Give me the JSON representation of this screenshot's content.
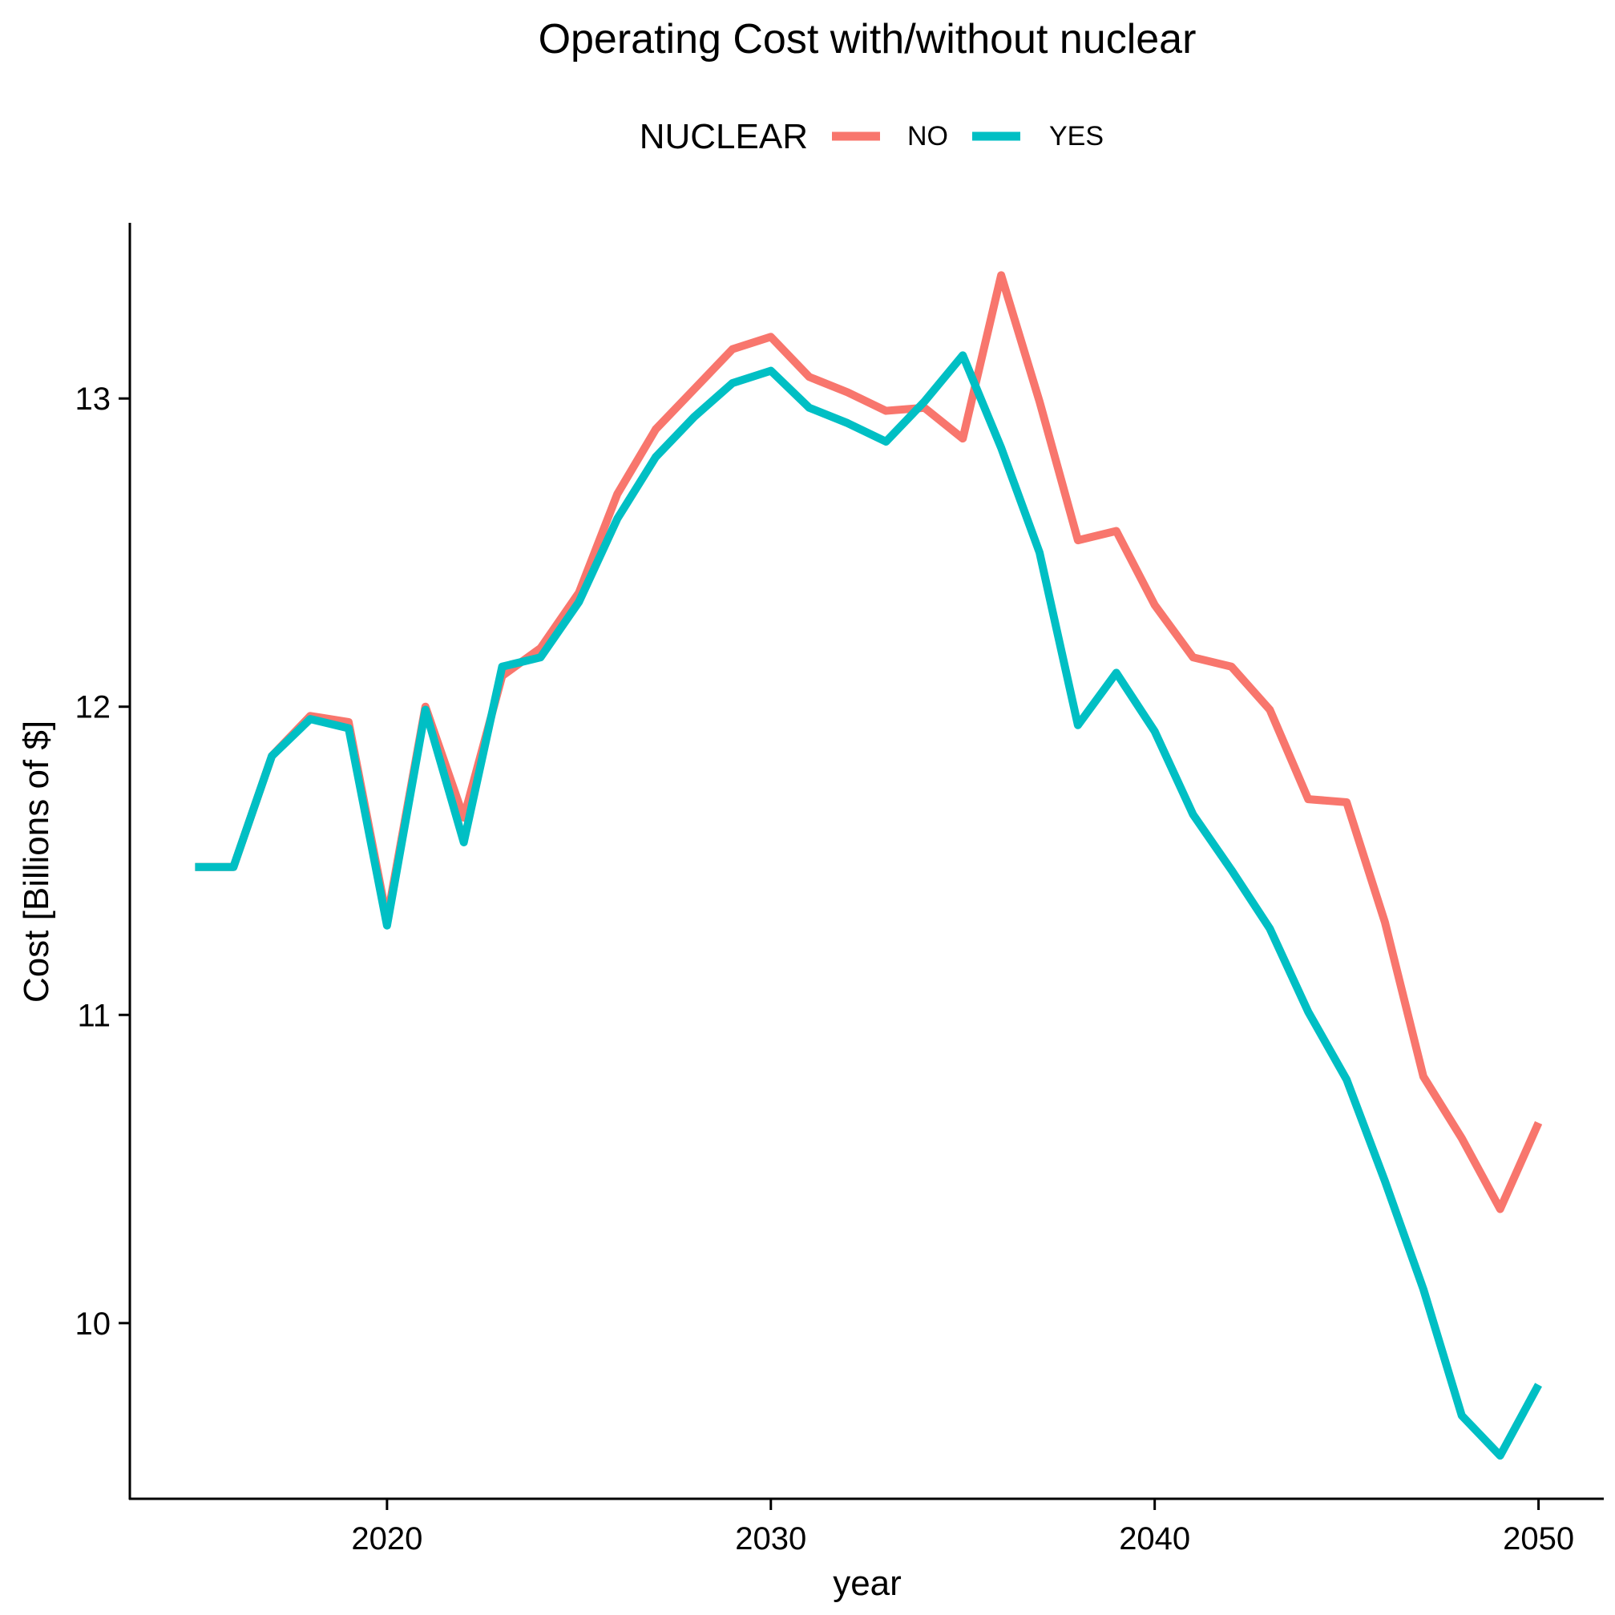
{
  "chart_data": {
    "type": "line",
    "title": "Operating Cost with/without nuclear",
    "xlabel": "year",
    "ylabel": "Cost [Billions of $]",
    "legend": {
      "title": "NUCLEAR",
      "position": "top"
    },
    "xlim": [
      2013.3,
      2051.7
    ],
    "ylim": [
      9.43,
      13.57
    ],
    "x_ticks": [
      2020,
      2030,
      2040,
      2050
    ],
    "y_ticks": [
      10,
      11,
      12,
      13
    ],
    "grid": false,
    "x": [
      2015,
      2016,
      2017,
      2018,
      2019,
      2020,
      2021,
      2022,
      2023,
      2024,
      2025,
      2026,
      2027,
      2028,
      2029,
      2030,
      2031,
      2032,
      2033,
      2034,
      2035,
      2036,
      2037,
      2038,
      2039,
      2040,
      2041,
      2042,
      2043,
      2044,
      2045,
      2046,
      2047,
      2048,
      2049,
      2050
    ],
    "series": [
      {
        "name": "NO",
        "color": "#F8766D",
        "values": [
          11.48,
          11.48,
          11.84,
          11.97,
          11.95,
          11.31,
          12.0,
          11.64,
          12.1,
          12.19,
          12.37,
          12.69,
          12.9,
          13.03,
          13.16,
          13.2,
          13.07,
          13.02,
          12.96,
          12.97,
          12.87,
          13.4,
          12.99,
          12.54,
          12.57,
          12.33,
          12.16,
          12.13,
          11.99,
          11.7,
          11.69,
          11.3,
          10.8,
          10.6,
          10.37,
          10.65
        ]
      },
      {
        "name": "YES",
        "color": "#00BFC4",
        "values": [
          11.48,
          11.48,
          11.84,
          11.96,
          11.93,
          11.29,
          11.99,
          11.56,
          12.13,
          12.16,
          12.34,
          12.61,
          12.81,
          12.94,
          13.05,
          13.09,
          12.97,
          12.92,
          12.86,
          12.99,
          13.14,
          12.84,
          12.5,
          11.94,
          12.11,
          11.92,
          11.65,
          11.47,
          11.28,
          11.01,
          10.79,
          10.46,
          10.11,
          9.7,
          9.57,
          9.8
        ]
      }
    ]
  }
}
